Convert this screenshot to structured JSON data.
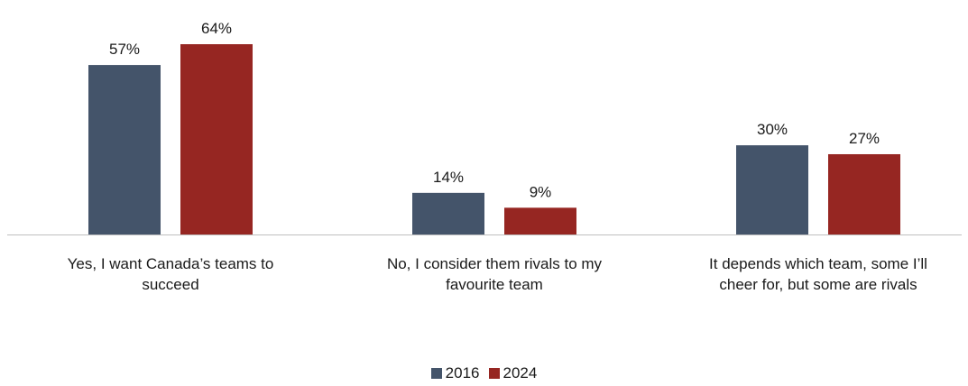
{
  "chart_data": {
    "type": "bar",
    "categories": [
      "Yes, I want Canada’s teams to succeed",
      "No, I consider them rivals to my favourite team",
      "It depends which team, some I’ll cheer for, but some are rivals"
    ],
    "category_lines": [
      [
        "Yes, I want Canada’s teams to",
        "succeed"
      ],
      [
        "No, I consider them rivals to my",
        "favourite team"
      ],
      [
        "It depends which team, some I’ll",
        "cheer for, but some are rivals"
      ]
    ],
    "series": [
      {
        "name": "2016",
        "values": [
          57,
          14,
          30
        ],
        "labels": [
          "57%",
          "14%",
          "30%"
        ],
        "color": "#44546a"
      },
      {
        "name": "2024",
        "values": [
          64,
          9,
          27
        ],
        "labels": [
          "64%",
          "9%",
          "27%"
        ],
        "color": "#962622"
      }
    ],
    "unit": "%",
    "ylim": [
      0,
      64
    ],
    "grid": false,
    "legend_position": "bottom",
    "axis_color": "#bfbfbf"
  }
}
